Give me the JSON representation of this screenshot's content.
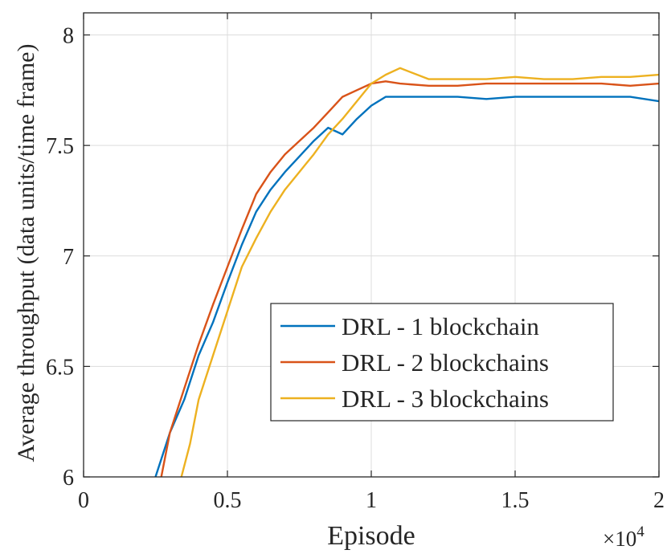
{
  "chart_data": {
    "type": "line",
    "xlabel": "Episode",
    "ylabel": "Average throughput (data units/time frame)",
    "x_exponent_label": "×10",
    "x_exponent_power": "4",
    "xlim": [
      0,
      2
    ],
    "ylim": [
      6,
      8.1
    ],
    "xticks": [
      0,
      0.5,
      1,
      1.5,
      2
    ],
    "xtick_labels": [
      "0",
      "0.5",
      "1",
      "1.5",
      "2"
    ],
    "yticks": [
      6,
      6.5,
      7,
      7.5,
      8
    ],
    "ytick_labels": [
      "6",
      "6.5",
      "7",
      "7.5",
      "8"
    ],
    "grid": true,
    "legend_position": "center-right",
    "series": [
      {
        "name": "DRL - 1 blockchain",
        "color": "#0072BD",
        "x": [
          0.25,
          0.3,
          0.35,
          0.4,
          0.45,
          0.5,
          0.55,
          0.6,
          0.65,
          0.7,
          0.75,
          0.8,
          0.85,
          0.9,
          0.95,
          1.0,
          1.05,
          1.1,
          1.2,
          1.3,
          1.4,
          1.5,
          1.6,
          1.7,
          1.8,
          1.9,
          2.0
        ],
        "y": [
          6.0,
          6.2,
          6.35,
          6.55,
          6.7,
          6.88,
          7.05,
          7.2,
          7.3,
          7.38,
          7.45,
          7.52,
          7.58,
          7.55,
          7.62,
          7.68,
          7.72,
          7.72,
          7.72,
          7.72,
          7.71,
          7.72,
          7.72,
          7.72,
          7.72,
          7.72,
          7.7
        ]
      },
      {
        "name": "DRL - 2 blockchains",
        "color": "#D95319",
        "x": [
          0.27,
          0.3,
          0.35,
          0.4,
          0.45,
          0.5,
          0.55,
          0.6,
          0.65,
          0.7,
          0.75,
          0.8,
          0.85,
          0.9,
          0.95,
          1.0,
          1.05,
          1.1,
          1.2,
          1.3,
          1.4,
          1.5,
          1.6,
          1.7,
          1.8,
          1.9,
          2.0
        ],
        "y": [
          6.0,
          6.2,
          6.4,
          6.6,
          6.78,
          6.95,
          7.12,
          7.28,
          7.38,
          7.46,
          7.52,
          7.58,
          7.65,
          7.72,
          7.75,
          7.78,
          7.79,
          7.78,
          7.77,
          7.77,
          7.78,
          7.78,
          7.78,
          7.78,
          7.78,
          7.77,
          7.78
        ]
      },
      {
        "name": "DRL - 3 blockchains",
        "color": "#EDB120",
        "x": [
          0.34,
          0.37,
          0.4,
          0.45,
          0.5,
          0.55,
          0.6,
          0.65,
          0.7,
          0.75,
          0.8,
          0.85,
          0.9,
          0.95,
          1.0,
          1.05,
          1.1,
          1.2,
          1.3,
          1.4,
          1.5,
          1.6,
          1.7,
          1.8,
          1.9,
          2.0
        ],
        "y": [
          6.0,
          6.15,
          6.35,
          6.55,
          6.75,
          6.95,
          7.08,
          7.2,
          7.3,
          7.38,
          7.46,
          7.55,
          7.62,
          7.7,
          7.78,
          7.82,
          7.85,
          7.8,
          7.8,
          7.8,
          7.81,
          7.8,
          7.8,
          7.81,
          7.81,
          7.82
        ]
      }
    ]
  }
}
